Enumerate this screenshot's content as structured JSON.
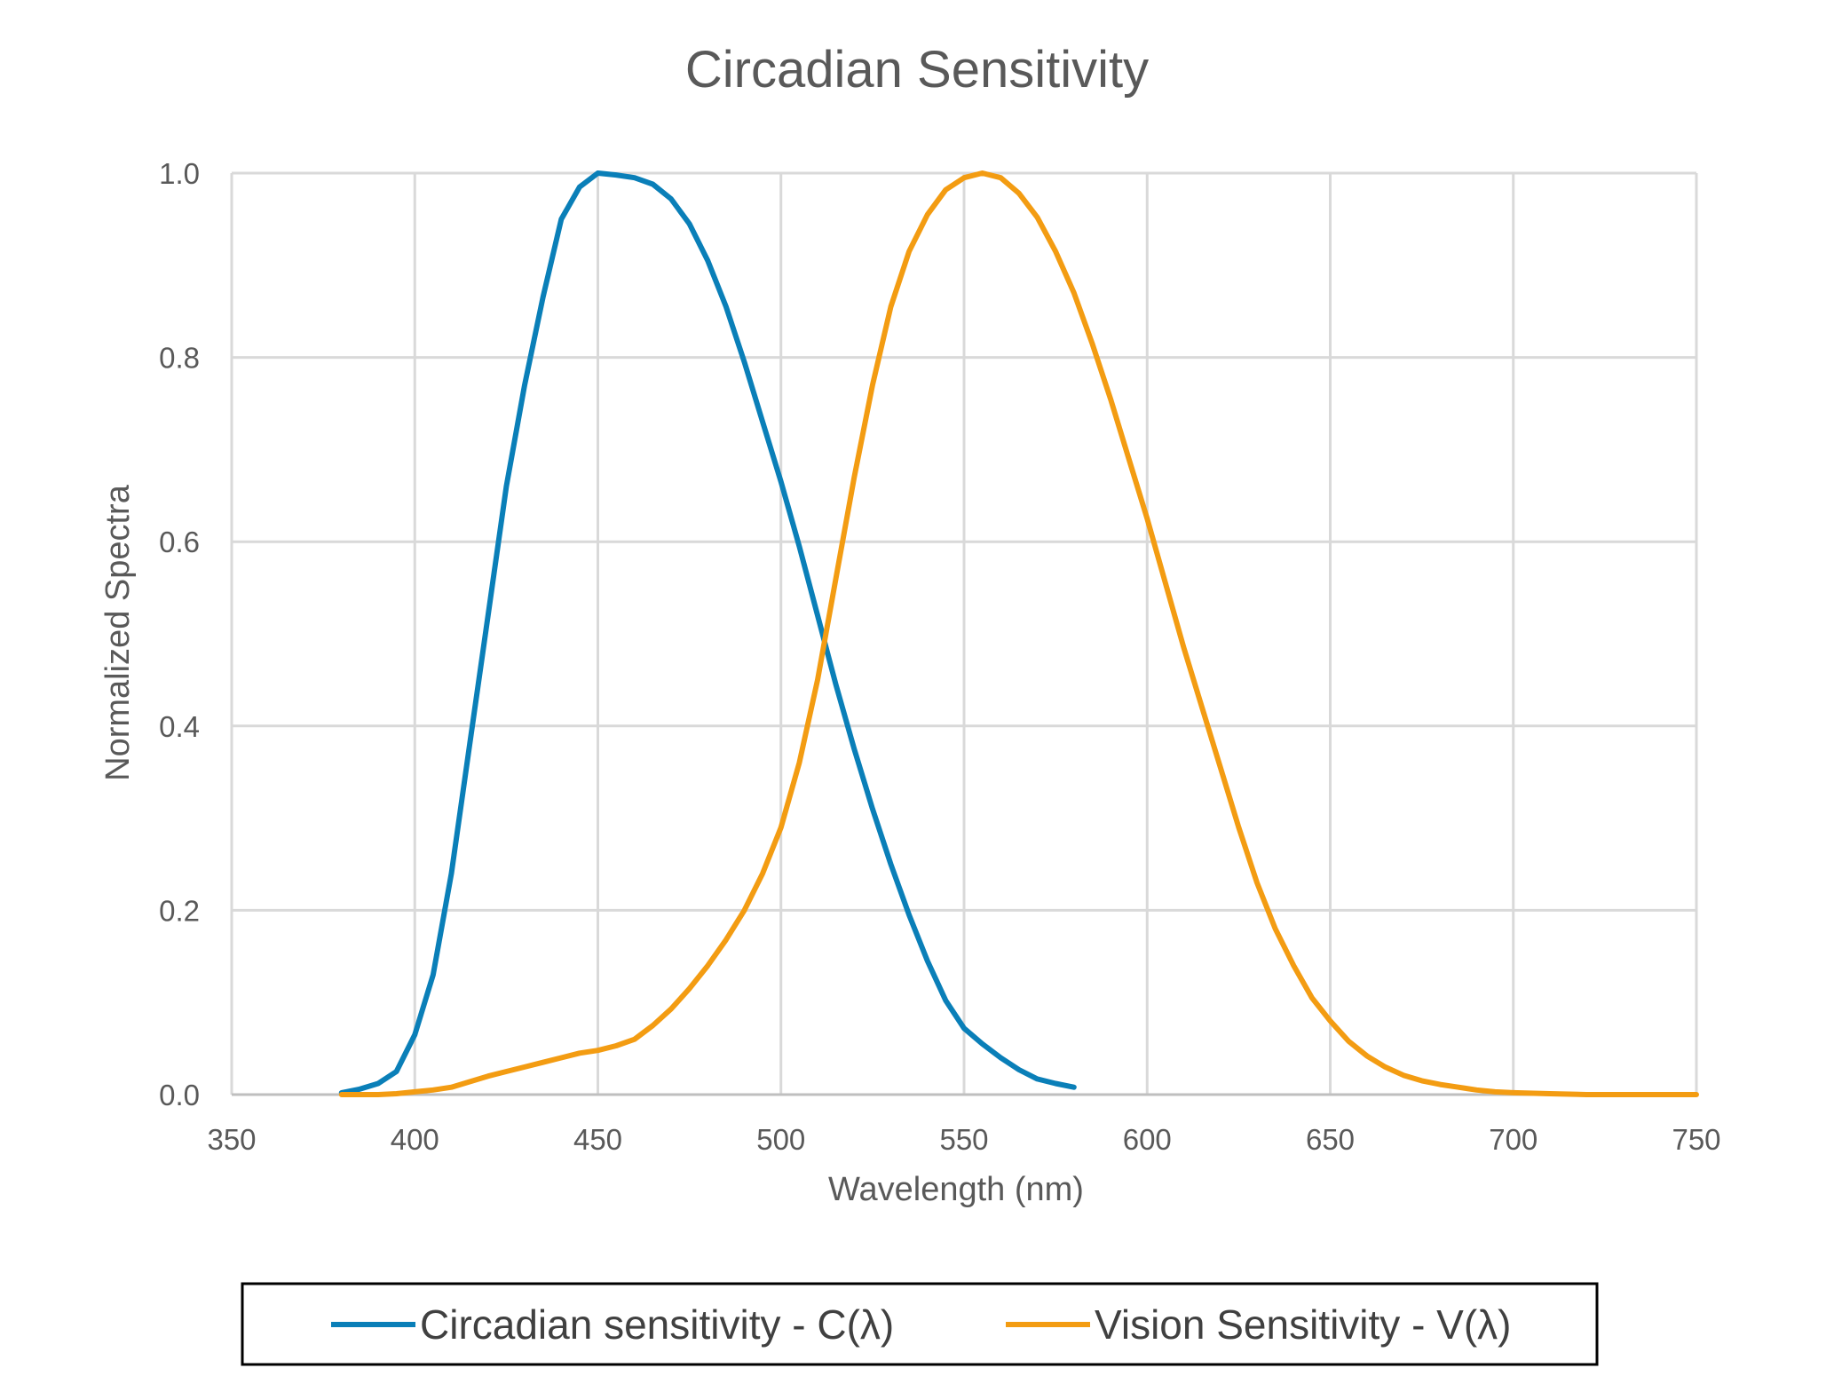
{
  "chart_data": {
    "type": "line",
    "title": "Circadian Sensitivity",
    "xlabel": "Wavelength (nm)",
    "ylabel": "Normalized Spectra",
    "xlim": [
      350,
      750
    ],
    "ylim": [
      0,
      1.0
    ],
    "x_ticks": [
      "350",
      "400",
      "450",
      "500",
      "550",
      "600",
      "650",
      "700",
      "750"
    ],
    "y_ticks": [
      "0.0",
      "0.2",
      "0.4",
      "0.6",
      "0.8",
      "1.0"
    ],
    "grid": true,
    "legend_position": "bottom",
    "series": [
      {
        "name": "Circadian sensitivity - C(λ)",
        "color": "#0a7fb8",
        "points": [
          [
            380,
            0.002
          ],
          [
            385,
            0.006
          ],
          [
            390,
            0.012
          ],
          [
            395,
            0.025
          ],
          [
            400,
            0.065
          ],
          [
            405,
            0.13
          ],
          [
            410,
            0.24
          ],
          [
            415,
            0.38
          ],
          [
            420,
            0.52
          ],
          [
            425,
            0.66
          ],
          [
            430,
            0.77
          ],
          [
            435,
            0.865
          ],
          [
            440,
            0.95
          ],
          [
            445,
            0.985
          ],
          [
            450,
            1.0
          ],
          [
            455,
            0.998
          ],
          [
            460,
            0.995
          ],
          [
            465,
            0.988
          ],
          [
            470,
            0.972
          ],
          [
            475,
            0.945
          ],
          [
            480,
            0.905
          ],
          [
            485,
            0.855
          ],
          [
            490,
            0.795
          ],
          [
            495,
            0.73
          ],
          [
            500,
            0.665
          ],
          [
            505,
            0.595
          ],
          [
            510,
            0.52
          ],
          [
            515,
            0.445
          ],
          [
            520,
            0.375
          ],
          [
            525,
            0.31
          ],
          [
            530,
            0.25
          ],
          [
            535,
            0.195
          ],
          [
            540,
            0.145
          ],
          [
            545,
            0.102
          ],
          [
            550,
            0.072
          ],
          [
            555,
            0.055
          ],
          [
            560,
            0.04
          ],
          [
            565,
            0.027
          ],
          [
            570,
            0.017
          ],
          [
            575,
            0.012
          ],
          [
            580,
            0.008
          ]
        ]
      },
      {
        "name": "Vision Sensitivity - V(λ)",
        "color": "#f39c12",
        "points": [
          [
            380,
            0.0
          ],
          [
            385,
            0.0
          ],
          [
            390,
            0.0
          ],
          [
            395,
            0.001
          ],
          [
            400,
            0.003
          ],
          [
            405,
            0.005
          ],
          [
            410,
            0.008
          ],
          [
            415,
            0.014
          ],
          [
            420,
            0.02
          ],
          [
            425,
            0.025
          ],
          [
            430,
            0.03
          ],
          [
            435,
            0.035
          ],
          [
            440,
            0.04
          ],
          [
            445,
            0.045
          ],
          [
            450,
            0.048
          ],
          [
            455,
            0.053
          ],
          [
            460,
            0.06
          ],
          [
            465,
            0.075
          ],
          [
            470,
            0.093
          ],
          [
            475,
            0.115
          ],
          [
            480,
            0.14
          ],
          [
            485,
            0.168
          ],
          [
            490,
            0.2
          ],
          [
            495,
            0.24
          ],
          [
            500,
            0.29
          ],
          [
            505,
            0.36
          ],
          [
            510,
            0.45
          ],
          [
            515,
            0.56
          ],
          [
            520,
            0.67
          ],
          [
            525,
            0.77
          ],
          [
            530,
            0.855
          ],
          [
            535,
            0.915
          ],
          [
            540,
            0.955
          ],
          [
            545,
            0.982
          ],
          [
            550,
            0.995
          ],
          [
            555,
            1.0
          ],
          [
            560,
            0.995
          ],
          [
            565,
            0.978
          ],
          [
            570,
            0.952
          ],
          [
            575,
            0.915
          ],
          [
            580,
            0.87
          ],
          [
            585,
            0.815
          ],
          [
            590,
            0.755
          ],
          [
            595,
            0.69
          ],
          [
            600,
            0.625
          ],
          [
            605,
            0.555
          ],
          [
            610,
            0.485
          ],
          [
            615,
            0.42
          ],
          [
            620,
            0.355
          ],
          [
            625,
            0.29
          ],
          [
            630,
            0.23
          ],
          [
            635,
            0.18
          ],
          [
            640,
            0.14
          ],
          [
            645,
            0.105
          ],
          [
            650,
            0.08
          ],
          [
            655,
            0.058
          ],
          [
            660,
            0.042
          ],
          [
            665,
            0.03
          ],
          [
            670,
            0.021
          ],
          [
            675,
            0.015
          ],
          [
            680,
            0.011
          ],
          [
            685,
            0.008
          ],
          [
            690,
            0.005
          ],
          [
            695,
            0.003
          ],
          [
            700,
            0.002
          ],
          [
            710,
            0.001
          ],
          [
            720,
            0.0
          ],
          [
            730,
            0.0
          ],
          [
            740,
            0.0
          ],
          [
            750,
            0.0
          ]
        ]
      }
    ]
  }
}
